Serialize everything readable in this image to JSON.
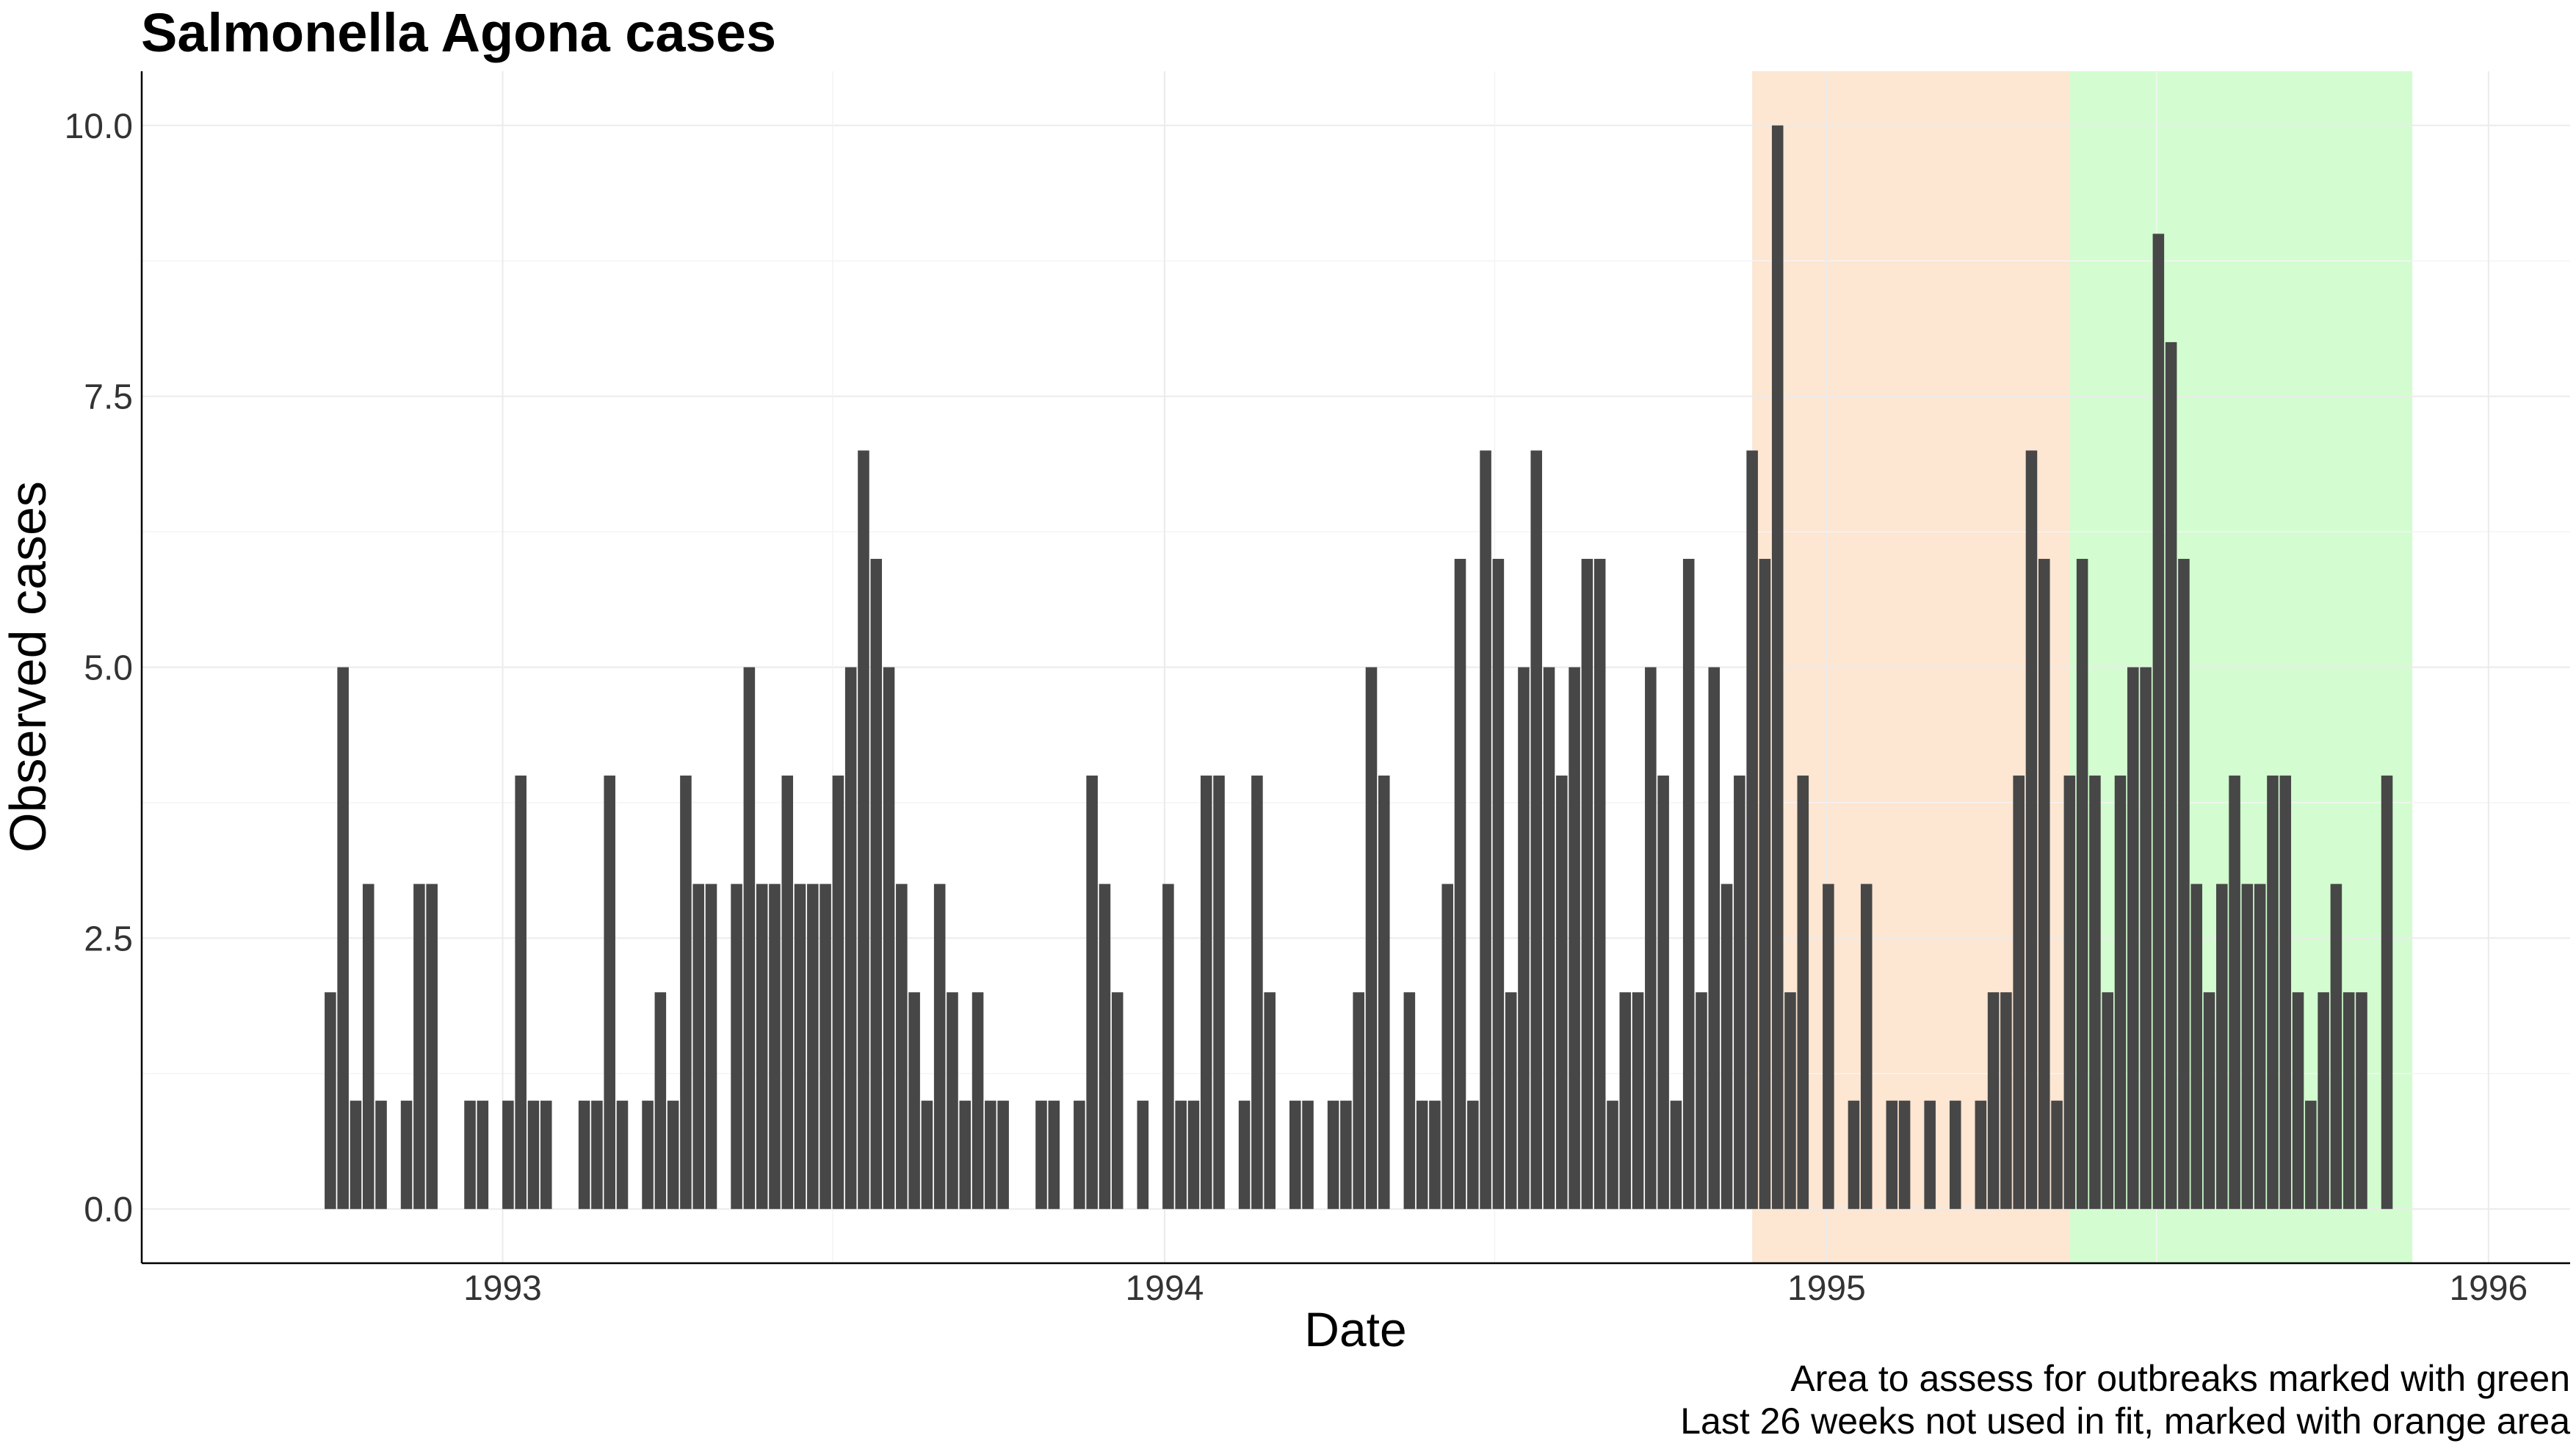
{
  "chart_data": {
    "type": "bar",
    "title": "Salmonella Agona cases",
    "xlabel": "Date",
    "ylabel": "Observed cases",
    "x_axis": "date",
    "x_start": "1992-09-28",
    "x_step_days": 7,
    "xlim": [
      "1992-06-16",
      "1996-02-15"
    ],
    "x_tick_labels": [
      "1993",
      "1994",
      "1995",
      "1996"
    ],
    "x_ticks": [
      "1993-01-01",
      "1994-01-01",
      "1995-01-01",
      "1996-01-01"
    ],
    "ylim": [
      -0.5,
      10.5
    ],
    "y_tick_labels": [
      "0.0",
      "2.5",
      "5.0",
      "7.5",
      "10.0"
    ],
    "y_ticks": [
      0,
      2.5,
      5,
      7.5,
      10
    ],
    "grid": true,
    "bar_color": "#474747",
    "values": [
      2,
      5,
      1,
      3,
      1,
      0,
      1,
      3,
      3,
      0,
      0,
      1,
      1,
      0,
      1,
      4,
      1,
      1,
      0,
      0,
      1,
      1,
      4,
      1,
      0,
      1,
      2,
      1,
      4,
      3,
      3,
      0,
      3,
      5,
      3,
      3,
      4,
      3,
      3,
      3,
      4,
      5,
      7,
      6,
      5,
      3,
      2,
      1,
      3,
      2,
      1,
      2,
      1,
      1,
      0,
      0,
      1,
      1,
      0,
      1,
      4,
      3,
      2,
      0,
      1,
      0,
      3,
      1,
      1,
      4,
      4,
      0,
      1,
      4,
      2,
      0,
      1,
      1,
      0,
      1,
      1,
      2,
      5,
      4,
      0,
      2,
      1,
      1,
      3,
      6,
      1,
      7,
      6,
      2,
      5,
      7,
      5,
      4,
      5,
      6,
      6,
      1,
      2,
      2,
      5,
      4,
      1,
      6,
      2,
      5,
      3,
      4,
      7,
      6,
      10,
      2,
      4,
      0,
      3,
      0,
      1,
      3,
      0,
      1,
      1,
      0,
      1,
      0,
      1,
      0,
      1,
      2,
      2,
      4,
      7,
      6,
      1,
      4,
      6,
      4,
      2,
      4,
      5,
      5,
      9,
      8,
      6,
      3,
      2,
      3,
      4,
      3,
      3,
      4,
      4,
      2,
      1,
      2,
      3,
      2,
      2,
      0,
      4
    ],
    "regions": [
      {
        "name": "Last 26 weeks not used in fit",
        "color": "#fde6d2",
        "start": "1994-11-21",
        "end": "1995-05-15"
      },
      {
        "name": "Area to assess for outbreaks",
        "color": "#d3fdd0",
        "start": "1995-05-15",
        "end": "1995-11-20"
      }
    ]
  },
  "captions": {
    "line1": "Area to assess for outbreaks marked with green",
    "line2": "Last 26 weeks not used in fit, marked with orange area"
  }
}
